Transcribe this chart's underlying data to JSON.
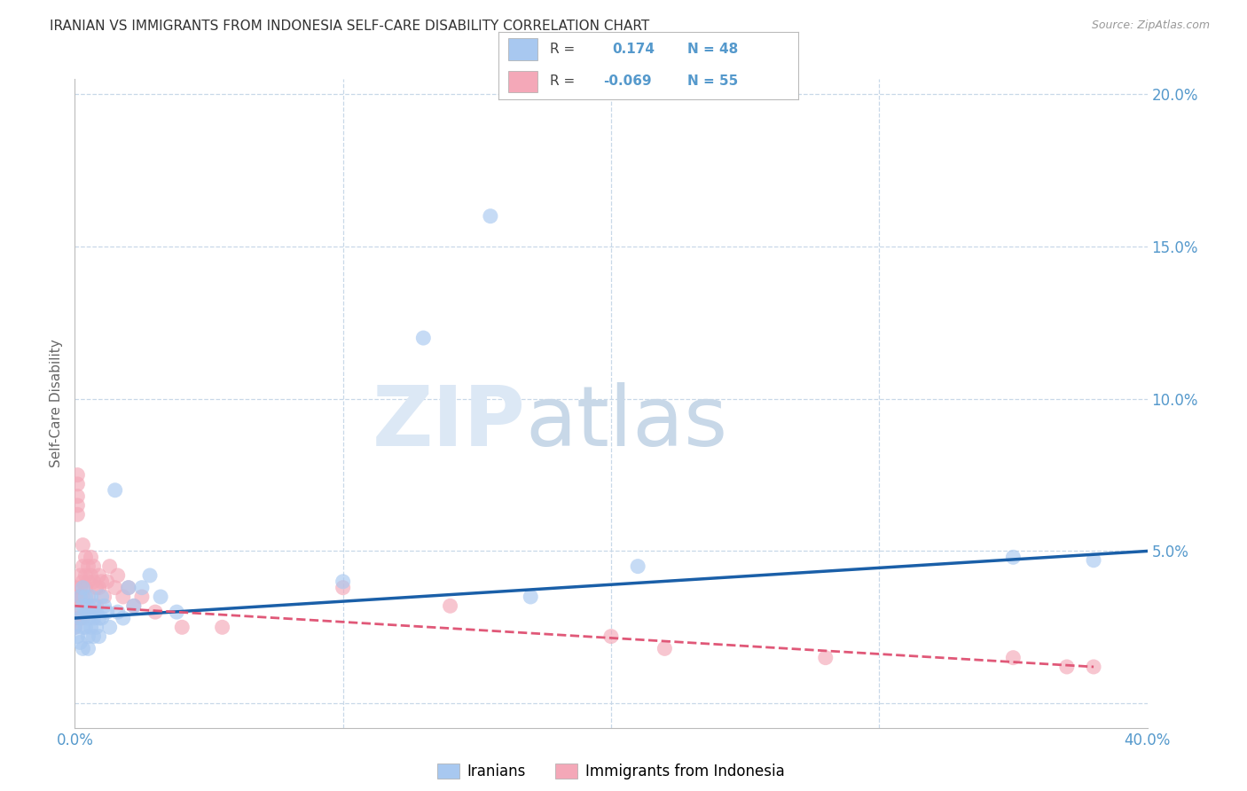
{
  "title": "IRANIAN VS IMMIGRANTS FROM INDONESIA SELF-CARE DISABILITY CORRELATION CHART",
  "source": "Source: ZipAtlas.com",
  "ylabel": "Self-Care Disability",
  "xlim": [
    0.0,
    0.4
  ],
  "ylim": [
    -0.008,
    0.205
  ],
  "xticks": [
    0.0,
    0.1,
    0.2,
    0.3,
    0.4
  ],
  "xticklabels": [
    "0.0%",
    "",
    "",
    "",
    "40.0%"
  ],
  "yticks": [
    0.0,
    0.05,
    0.1,
    0.15,
    0.2
  ],
  "yticklabels_right": [
    "",
    "5.0%",
    "10.0%",
    "15.0%",
    "20.0%"
  ],
  "iranian_color": "#a8c8f0",
  "indonesia_color": "#f4a8b8",
  "iranian_line_color": "#1a5fa8",
  "indonesia_line_color": "#e05878",
  "background_color": "#ffffff",
  "grid_color": "#c8d8e8",
  "title_color": "#333333",
  "axis_label_color": "#666666",
  "tick_color": "#5599cc",
  "watermark_zip_color": "#dce8f5",
  "watermark_atlas_color": "#c8d8e8",
  "iranian_scatter_x": [
    0.0,
    0.001,
    0.001,
    0.002,
    0.002,
    0.002,
    0.003,
    0.003,
    0.003,
    0.003,
    0.004,
    0.004,
    0.004,
    0.005,
    0.005,
    0.005,
    0.005,
    0.006,
    0.006,
    0.006,
    0.007,
    0.007,
    0.007,
    0.008,
    0.008,
    0.009,
    0.009,
    0.01,
    0.01,
    0.011,
    0.012,
    0.013,
    0.015,
    0.016,
    0.018,
    0.02,
    0.022,
    0.025,
    0.028,
    0.032,
    0.038,
    0.1,
    0.13,
    0.155,
    0.17,
    0.21,
    0.35,
    0.38
  ],
  "iranian_scatter_y": [
    0.025,
    0.03,
    0.022,
    0.028,
    0.035,
    0.02,
    0.032,
    0.025,
    0.018,
    0.038,
    0.03,
    0.025,
    0.035,
    0.028,
    0.022,
    0.032,
    0.018,
    0.03,
    0.025,
    0.035,
    0.028,
    0.032,
    0.022,
    0.03,
    0.025,
    0.028,
    0.022,
    0.035,
    0.028,
    0.032,
    0.03,
    0.025,
    0.07,
    0.03,
    0.028,
    0.038,
    0.032,
    0.038,
    0.042,
    0.035,
    0.03,
    0.04,
    0.12,
    0.16,
    0.035,
    0.045,
    0.048,
    0.047
  ],
  "indonesia_scatter_x": [
    0.0,
    0.0,
    0.0,
    0.0,
    0.0,
    0.001,
    0.001,
    0.001,
    0.001,
    0.001,
    0.002,
    0.002,
    0.002,
    0.002,
    0.003,
    0.003,
    0.003,
    0.003,
    0.003,
    0.004,
    0.004,
    0.004,
    0.005,
    0.005,
    0.005,
    0.005,
    0.006,
    0.006,
    0.007,
    0.007,
    0.008,
    0.008,
    0.009,
    0.009,
    0.01,
    0.011,
    0.012,
    0.013,
    0.015,
    0.016,
    0.018,
    0.02,
    0.022,
    0.025,
    0.03,
    0.04,
    0.055,
    0.1,
    0.14,
    0.2,
    0.22,
    0.28,
    0.35,
    0.37,
    0.38
  ],
  "indonesia_scatter_y": [
    0.035,
    0.032,
    0.028,
    0.038,
    0.025,
    0.065,
    0.072,
    0.068,
    0.075,
    0.062,
    0.038,
    0.042,
    0.035,
    0.028,
    0.045,
    0.04,
    0.052,
    0.035,
    0.028,
    0.048,
    0.042,
    0.038,
    0.04,
    0.045,
    0.035,
    0.03,
    0.042,
    0.048,
    0.04,
    0.045,
    0.038,
    0.032,
    0.042,
    0.038,
    0.04,
    0.035,
    0.04,
    0.045,
    0.038,
    0.042,
    0.035,
    0.038,
    0.032,
    0.035,
    0.03,
    0.025,
    0.025,
    0.038,
    0.032,
    0.022,
    0.018,
    0.015,
    0.015,
    0.012,
    0.012
  ],
  "iranian_line_x": [
    0.0,
    0.4
  ],
  "iranian_line_y": [
    0.028,
    0.05
  ],
  "indonesia_line_x": [
    0.0,
    0.38
  ],
  "indonesia_line_y": [
    0.032,
    0.012
  ]
}
